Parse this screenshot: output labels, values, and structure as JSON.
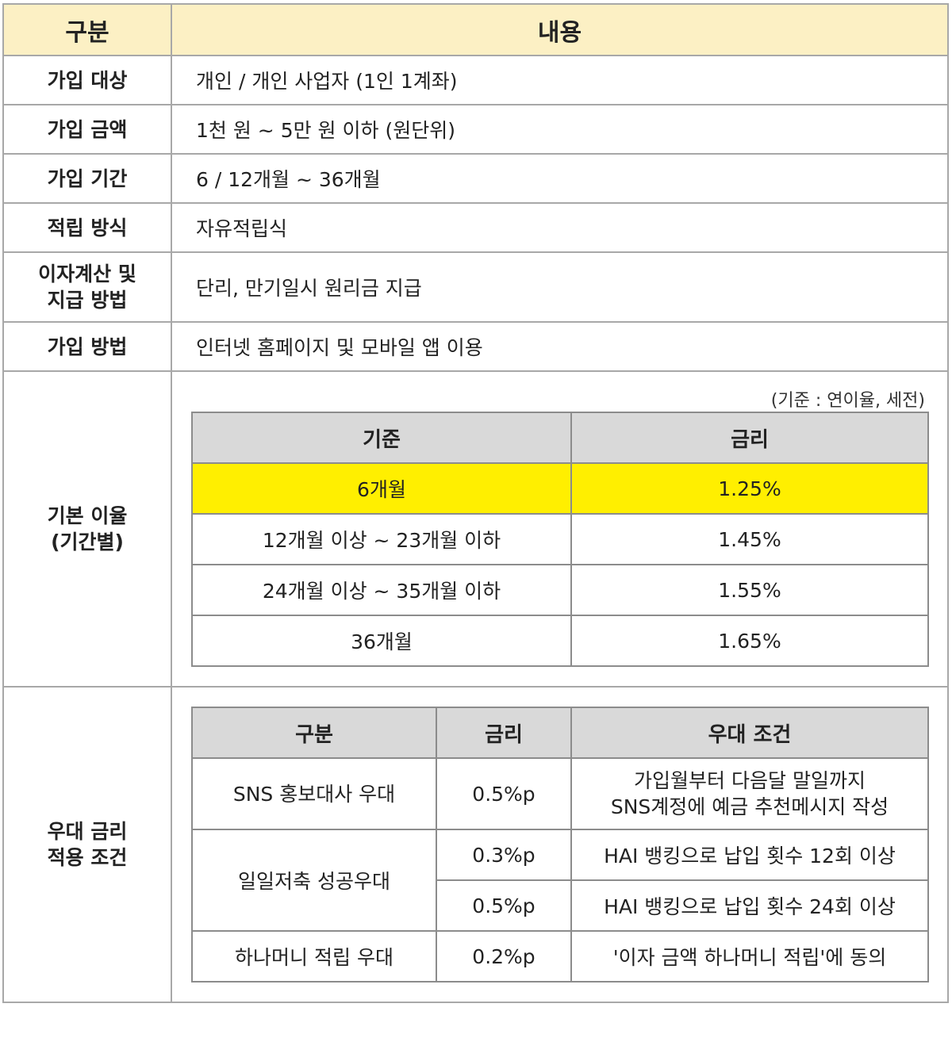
{
  "header": {
    "col1": "구분",
    "col2": "내용"
  },
  "rows": [
    {
      "label": "가입 대상",
      "value": "개인 / 개인 사업자 (1인 1계좌)"
    },
    {
      "label": "가입 금액",
      "value": "1천 원 ~ 5만 원 이하 (원단위)"
    },
    {
      "label": "가입 기간",
      "value": "6 / 12개월 ~ 36개월"
    },
    {
      "label": "적립 방식",
      "value": "자유적립식"
    },
    {
      "label_line1": "이자계산 및",
      "label_line2": "지급 방법",
      "value": "단리, 만기일시 원리금 지급"
    },
    {
      "label": "가입 방법",
      "value": "인터넷 홈페이지 및 모바일 앱 이용"
    }
  ],
  "base_rate": {
    "label_line1": "기본 이율",
    "label_line2": "(기간별)",
    "note": "(기준 : 연이율, 세전)",
    "headers": [
      "기준",
      "금리"
    ],
    "rows": [
      {
        "period": "6개월",
        "rate": "1.25%",
        "highlight": true
      },
      {
        "period": "12개월 이상 ~ 23개월 이하",
        "rate": "1.45%"
      },
      {
        "period": "24개월 이상 ~ 35개월 이하",
        "rate": "1.55%"
      },
      {
        "period": "36개월",
        "rate": "1.65%"
      }
    ]
  },
  "preferential": {
    "label_line1": "우대 금리",
    "label_line2": "적용 조건",
    "headers": [
      "구분",
      "금리",
      "우대 조건"
    ],
    "sns": {
      "name": "SNS 홍보대사 우대",
      "rate": "0.5%p",
      "cond_line1": "가입월부터 다음달 말일까지",
      "cond_line2": "SNS계정에 예금 추천메시지 작성"
    },
    "daily": {
      "name": "일일저축 성공우대",
      "rate1": "0.3%p",
      "cond1": "HAI 뱅킹으로 납입 횟수 12회 이상",
      "rate2": "0.5%p",
      "cond2": "HAI 뱅킹으로 납입 횟수 24회 이상"
    },
    "hana": {
      "name": "하나머니 적립 우대",
      "rate": "0.2%p",
      "cond": "'이자 금액 하나머니 적립'에 동의"
    }
  },
  "colors": {
    "header_bg": "#fcf0c4",
    "inner_header_bg": "#d9d9d9",
    "highlight": "#ffef00"
  }
}
